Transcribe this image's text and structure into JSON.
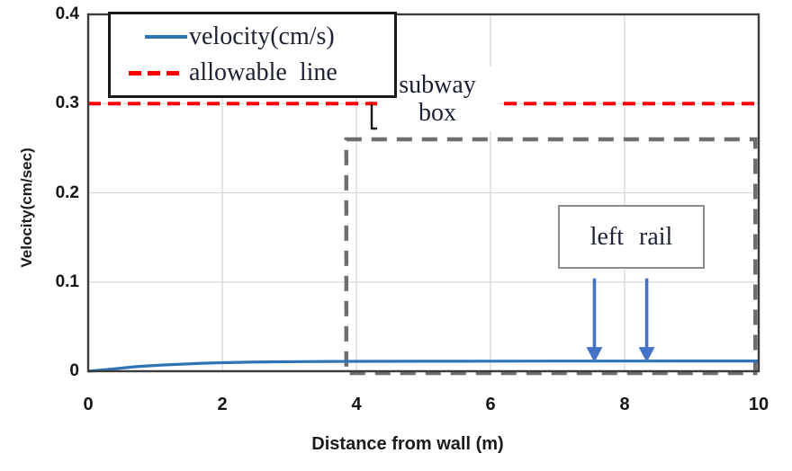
{
  "chart_data": {
    "type": "line",
    "title": "",
    "xlabel": "Distance from wall (m)",
    "ylabel": "Velocity(cm/sec)",
    "xlim": [
      0,
      10
    ],
    "ylim": [
      0,
      0.4
    ],
    "x_ticks": [
      0,
      2,
      4,
      6,
      8,
      10
    ],
    "x_tick_labels": [
      "0",
      "2",
      "4",
      "6",
      "8",
      "10"
    ],
    "y_ticks": [
      0,
      0.1,
      0.2,
      0.3,
      0.4
    ],
    "y_tick_labels": [
      "0",
      "0.1",
      "0.2",
      "0.3",
      "0.4"
    ],
    "grid": true,
    "grid_color": "#d9d9d9",
    "axis_color": "#3c3c3c",
    "text_color": "#1c2133",
    "legend_position": "top-left",
    "series": [
      {
        "name": "velocity(cm/s)",
        "style": "solid",
        "color": "#2e75b6",
        "x": [
          0,
          0.15,
          0.3,
          0.5,
          0.7,
          0.9,
          1.1,
          1.4,
          1.7,
          2.0,
          2.4,
          2.8,
          3.2,
          3.6,
          4.0,
          5.0,
          6.0,
          7.0,
          8.0,
          9.0,
          10.0
        ],
        "y": [
          0,
          0.001,
          0.002,
          0.0035,
          0.005,
          0.006,
          0.007,
          0.008,
          0.009,
          0.0096,
          0.0102,
          0.0106,
          0.0108,
          0.011,
          0.0111,
          0.0112,
          0.0113,
          0.0114,
          0.0114,
          0.0115,
          0.0115
        ]
      },
      {
        "name": "allowable line",
        "style": "dashed",
        "color": "#ff0000",
        "x": [
          0,
          10
        ],
        "y": [
          0.3,
          0.3
        ]
      }
    ],
    "annotations": {
      "subway_box": {
        "text": [
          "subway",
          "box"
        ],
        "rect": {
          "x0": 3.85,
          "y0": -0.002,
          "x1": 9.95,
          "y1": 0.26
        },
        "color": "#6e6e6e"
      },
      "left_rail": {
        "text": "left rail",
        "arrows_x": [
          7.55,
          8.33
        ],
        "arrow_top_y": 0.104,
        "arrow_tip_y": 0.01,
        "color": "#4472c4"
      }
    }
  }
}
